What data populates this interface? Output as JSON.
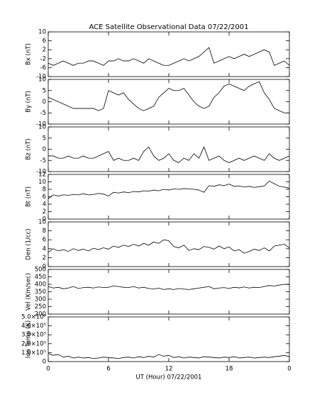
{
  "chart_data": [
    {
      "type": "line",
      "title": "ACE Satellite Observational Data   07/22/2001",
      "ylabel": "Bx (nT)",
      "color": "#000000",
      "x": [
        0,
        0.5,
        1,
        1.5,
        2,
        2.5,
        3,
        3.5,
        4,
        4.5,
        5,
        5.5,
        6,
        6.5,
        7,
        7.5,
        8,
        8.5,
        9,
        9.5,
        10,
        10.5,
        11,
        11.5,
        12,
        12.5,
        13,
        13.5,
        14,
        14.5,
        15,
        15.5,
        16,
        16.5,
        17,
        17.5,
        18,
        18.5,
        19,
        19.5,
        20,
        20.5,
        21,
        21.5,
        22,
        22.5,
        23,
        23.5,
        24
      ],
      "values": [
        -4,
        -5,
        -4,
        -3,
        -4,
        -5,
        -4,
        -4,
        -3,
        -3,
        -4,
        -5,
        -3,
        -3,
        -2,
        -3,
        -3,
        -2,
        -3,
        -4,
        -2,
        -3,
        -4,
        -5,
        -5,
        -4,
        -3,
        -2,
        -3,
        -2,
        -1,
        1,
        3,
        -4,
        -3,
        -2,
        -1,
        -2,
        -1,
        0,
        -1,
        0,
        1,
        2,
        1,
        -5,
        -4,
        -3,
        -5
      ],
      "xlim": [
        0,
        24
      ],
      "ylim": [
        -10,
        10
      ],
      "yticks": [
        -10,
        -6,
        -2,
        2,
        6,
        10
      ]
    },
    {
      "type": "line",
      "ylabel": "By (nT)",
      "color": "#000000",
      "x": [
        0,
        0.5,
        1,
        1.5,
        2,
        2.5,
        3,
        3.5,
        4,
        4.5,
        5,
        5.5,
        6,
        6.5,
        7,
        7.5,
        8,
        8.5,
        9,
        9.5,
        10,
        10.5,
        11,
        11.5,
        12,
        12.5,
        13,
        13.5,
        14,
        14.5,
        15,
        15.5,
        16,
        16.5,
        17,
        17.5,
        18,
        18.5,
        19,
        19.5,
        20,
        20.5,
        21,
        21.5,
        22,
        22.5,
        23,
        23.5,
        24
      ],
      "values": [
        2,
        1,
        0,
        -1,
        -2,
        -3,
        -3,
        -3,
        -3,
        -3,
        -4,
        -3,
        5,
        4,
        3,
        4,
        1,
        -1,
        -3,
        -4,
        -3,
        -2,
        2,
        4,
        6,
        5,
        5,
        6,
        3,
        0,
        -2,
        -3,
        -2,
        2,
        4,
        7,
        8,
        7,
        6,
        5,
        7,
        8,
        9,
        4,
        1,
        -3,
        -4,
        -5,
        -5
      ],
      "xlim": [
        0,
        24
      ],
      "ylim": [
        -10,
        10
      ],
      "yticks": [
        -10,
        -5,
        0,
        5,
        10
      ]
    },
    {
      "type": "line",
      "ylabel": "Bz (nT)",
      "color": "#000000",
      "x": [
        0,
        0.5,
        1,
        1.5,
        2,
        2.5,
        3,
        3.5,
        4,
        4.5,
        5,
        5.5,
        6,
        6.5,
        7,
        7.5,
        8,
        8.5,
        9,
        9.5,
        10,
        10.5,
        11,
        11.5,
        12,
        12.5,
        13,
        13.5,
        14,
        14.5,
        15,
        15.5,
        16,
        16.5,
        17,
        17.5,
        18,
        18.5,
        19,
        19.5,
        20,
        20.5,
        21,
        21.5,
        22,
        22.5,
        23,
        23.5,
        24
      ],
      "values": [
        -3,
        -3,
        -4,
        -4,
        -3,
        -4,
        -4,
        -3,
        -4,
        -4,
        -3,
        -2,
        -1,
        -5,
        -4,
        -5,
        -5,
        -4,
        -5,
        -1,
        1,
        -3,
        -5,
        -4,
        -2,
        -5,
        -6,
        -4,
        -5,
        -2,
        -4,
        1,
        -5,
        -4,
        -3,
        -5,
        -6,
        -5,
        -4,
        -5,
        -4,
        -3,
        -4,
        -5,
        -2,
        -4,
        -5,
        -4,
        -3
      ],
      "xlim": [
        0,
        24
      ],
      "ylim": [
        -10,
        10
      ],
      "yticks": [
        -10,
        -5,
        0,
        5,
        10
      ]
    },
    {
      "type": "line",
      "ylabel": "Bt (nT)",
      "color": "#000000",
      "x": [
        0,
        0.5,
        1,
        1.5,
        2,
        2.5,
        3,
        3.5,
        4,
        4.5,
        5,
        5.5,
        6,
        6.5,
        7,
        7.5,
        8,
        8.5,
        9,
        9.5,
        10,
        10.5,
        11,
        11.5,
        12,
        12.5,
        13,
        13.5,
        14,
        14.5,
        15,
        15.5,
        16,
        16.5,
        17,
        17.5,
        18,
        18.5,
        19,
        19.5,
        20,
        20.5,
        21,
        21.5,
        22,
        22.5,
        23,
        23.5,
        24
      ],
      "values": [
        5.5,
        6.5,
        6.2,
        6.5,
        6.4,
        6.6,
        6.5,
        6.8,
        6.5,
        6.6,
        6.9,
        6.7,
        6.2,
        7.2,
        7,
        7.3,
        7.1,
        7.4,
        7.3,
        7.6,
        7.5,
        7.8,
        7.6,
        8,
        7.8,
        8.1,
        8,
        8.2,
        8.1,
        8,
        7.8,
        7.2,
        9,
        8.8,
        9.2,
        9,
        9.4,
        8.8,
        8.9,
        8.6,
        8.8,
        8.5,
        8.7,
        8.9,
        10.2,
        9.5,
        8.8,
        8.6,
        8.3
      ],
      "xlim": [
        0,
        24
      ],
      "ylim": [
        0,
        12
      ],
      "yticks": [
        0,
        2,
        4,
        6,
        8,
        10,
        12
      ]
    },
    {
      "type": "line",
      "ylabel": "Den (1/cc)",
      "color": "#000000",
      "x": [
        0,
        0.5,
        1,
        1.5,
        2,
        2.5,
        3,
        3.5,
        4,
        4.5,
        5,
        5.5,
        6,
        6.5,
        7,
        7.5,
        8,
        8.5,
        9,
        9.5,
        10,
        10.5,
        11,
        11.5,
        12,
        12.5,
        13,
        13.5,
        14,
        14.5,
        15,
        15.5,
        16,
        16.5,
        17,
        17.5,
        18,
        18.5,
        19,
        19.5,
        20,
        20.5,
        21,
        21.5,
        22,
        22.5,
        23,
        23.5,
        24
      ],
      "values": [
        3.2,
        4,
        3.5,
        3.8,
        3.4,
        4,
        3.6,
        3.9,
        3.5,
        4.1,
        3.8,
        4.2,
        3.9,
        4.6,
        4.3,
        4.8,
        4.5,
        5,
        4.6,
        5.2,
        4.8,
        5.5,
        5.2,
        6,
        5.8,
        4.5,
        4.2,
        4.8,
        3.6,
        4,
        3.8,
        4.5,
        4.3,
        3.9,
        4.6,
        4,
        4.4,
        3.5,
        3.8,
        3,
        3.4,
        3.9,
        3.6,
        4.2,
        3.5,
        4.6,
        4.8,
        5,
        4.2
      ],
      "xlim": [
        0,
        24
      ],
      "ylim": [
        0,
        10
      ],
      "yticks": [
        0,
        2,
        4,
        6,
        8,
        10
      ]
    },
    {
      "type": "line",
      "ylabel": "Vel (Km/sec)",
      "color": "#000000",
      "x": [
        0,
        0.5,
        1,
        1.5,
        2,
        2.5,
        3,
        3.5,
        4,
        4.5,
        5,
        5.5,
        6,
        6.5,
        7,
        7.5,
        8,
        8.5,
        9,
        9.5,
        10,
        10.5,
        11,
        11.5,
        12,
        12.5,
        13,
        13.5,
        14,
        14.5,
        15,
        15.5,
        16,
        16.5,
        17,
        17.5,
        18,
        18.5,
        19,
        19.5,
        20,
        20.5,
        21,
        21.5,
        22,
        22.5,
        23,
        23.5,
        24
      ],
      "values": [
        385,
        375,
        380,
        370,
        375,
        385,
        372,
        378,
        380,
        375,
        382,
        378,
        380,
        390,
        385,
        380,
        378,
        385,
        375,
        380,
        372,
        368,
        375,
        365,
        370,
        365,
        372,
        368,
        365,
        370,
        375,
        380,
        385,
        370,
        375,
        378,
        372,
        380,
        376,
        382,
        375,
        380,
        378,
        385,
        392,
        388,
        395,
        400,
        398
      ],
      "xlim": [
        0,
        24
      ],
      "ylim": [
        200,
        500
      ],
      "yticks": [
        200,
        250,
        300,
        350,
        400,
        450,
        500
      ]
    },
    {
      "type": "line",
      "ylabel": "Ion Temp (K)",
      "xlabel": "UT (Hour)   07/22/2001",
      "color": "#000000",
      "x": [
        0,
        0.5,
        1,
        1.5,
        2,
        2.5,
        3,
        3.5,
        4,
        4.5,
        5,
        5.5,
        6,
        6.5,
        7,
        7.5,
        8,
        8.5,
        9,
        9.5,
        10,
        10.5,
        11,
        11.5,
        12,
        12.5,
        13,
        13.5,
        14,
        14.5,
        15,
        15.5,
        16,
        16.5,
        17,
        17.5,
        18,
        18.5,
        19,
        19.5,
        20,
        20.5,
        21,
        21.5,
        22,
        22.5,
        23,
        23.5,
        24
      ],
      "values": [
        90000,
        70000,
        80000,
        50000,
        60000,
        40000,
        50000,
        40000,
        45000,
        35000,
        40000,
        50000,
        45000,
        40000,
        35000,
        45000,
        50000,
        40000,
        55000,
        45000,
        60000,
        50000,
        80000,
        60000,
        70000,
        45000,
        55000,
        40000,
        50000,
        45000,
        40000,
        55000,
        50000,
        45000,
        40000,
        50000,
        45000,
        55000,
        40000,
        45000,
        50000,
        40000,
        45000,
        50000,
        45000,
        55000,
        60000,
        70000,
        55000
      ],
      "xlim": [
        0,
        24
      ],
      "ylim": [
        0,
        500000
      ],
      "yticks": [
        0,
        {
          "value": 100000,
          "label": "1.0×10⁵"
        },
        {
          "value": 200000,
          "label": "2.0×10⁵"
        },
        {
          "value": 300000,
          "label": "3.0×10⁵"
        },
        {
          "value": 400000,
          "label": "4.0×10⁵"
        },
        {
          "value": 500000,
          "label": "5.0×10⁵"
        }
      ],
      "xticks": [
        0,
        6,
        12,
        18,
        {
          "value": 24,
          "label": "0"
        }
      ]
    }
  ]
}
